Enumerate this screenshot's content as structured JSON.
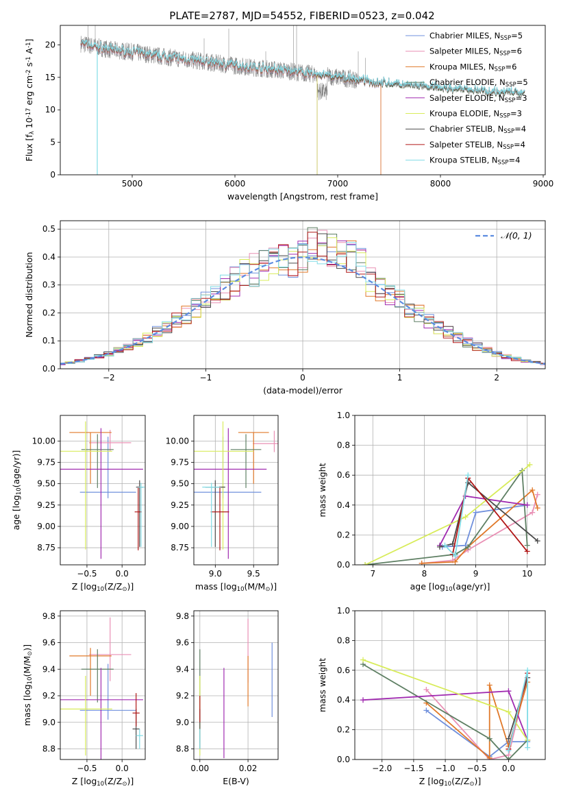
{
  "figure": {
    "title": "PLATE=2787, MJD=54552, FIBERID=0523, z=0.042"
  },
  "colors": {
    "Chabrier MILES": "#6f8fdc",
    "Salpeter MILES": "#e98fb4",
    "Kroupa MILES": "#e07828",
    "Chabrier ELODIE": "#5e7f63",
    "Salpeter ELODIE": "#a02ab0",
    "Kroupa ELODIE": "#d8ec5a",
    "Chabrier STELIB": "#4a4a4a",
    "Salpeter STELIB": "#b01616",
    "Kroupa STELIB": "#80dce6",
    "data": "#808080",
    "normal": "#5b8be0",
    "grid": "#b0b0b0"
  },
  "chart_data": [
    {
      "id": "spectrum",
      "type": "line",
      "xlabel": "wavelength [Angstrom, rest frame]",
      "ylabel": "Flux [f_λ 10^-17 erg cm^-2 s^-1 A^-1]",
      "xlim": [
        4300,
        9020
      ],
      "ylim": [
        0,
        23
      ],
      "xticks": [
        5000,
        6000,
        7000,
        8000,
        9000
      ],
      "yticks": [
        0,
        5,
        10,
        15,
        20
      ],
      "grid": false,
      "legend_position": "upper right",
      "legend": [
        {
          "label": "Chabrier MILES, N",
          "sub": "SSP",
          "val": "=5"
        },
        {
          "label": "Salpeter MILES, N",
          "sub": "SSP",
          "val": "=6"
        },
        {
          "label": "Kroupa MILES, N",
          "sub": "SSP",
          "val": "=6"
        },
        {
          "label": "Chabrier ELODIE, N",
          "sub": "SSP",
          "val": "=5"
        },
        {
          "label": "Salpeter ELODIE, N",
          "sub": "SSP",
          "val": "=3"
        },
        {
          "label": "Kroupa ELODIE, N",
          "sub": "SSP",
          "val": "=3"
        },
        {
          "label": "Chabrier STELIB, N",
          "sub": "SSP",
          "val": "=4"
        },
        {
          "label": "Salpeter STELIB, N",
          "sub": "SSP",
          "val": "=4"
        },
        {
          "label": "Kroupa STELIB, N",
          "sub": "SSP",
          "val": "=4"
        }
      ],
      "continuum": [
        [
          4500,
          20.2
        ],
        [
          4800,
          19.2
        ],
        [
          5000,
          18.9
        ],
        [
          5300,
          18.2
        ],
        [
          5600,
          17.6
        ],
        [
          6000,
          16.8
        ],
        [
          6500,
          16.0
        ],
        [
          7000,
          15.0
        ],
        [
          7500,
          14.0
        ],
        [
          8000,
          13.3
        ],
        [
          8500,
          12.8
        ],
        [
          8820,
          12.6
        ]
      ],
      "model_ranges": {
        "Chabrier MILES": [
          4500,
          7420
        ],
        "Salpeter MILES": [
          4500,
          7420
        ],
        "Kroupa MILES": [
          4500,
          7420
        ],
        "Chabrier ELODIE": [
          4500,
          8820
        ],
        "Salpeter ELODIE": [
          4500,
          6800
        ],
        "Kroupa ELODIE": [
          4500,
          6800
        ],
        "Chabrier STELIB": [
          4500,
          8820
        ],
        "Salpeter STELIB": [
          4500,
          8820
        ],
        "Kroupa STELIB": [
          4500,
          8820
        ]
      },
      "spikes": [
        [
          4660,
          0
        ],
        [
          4570,
          23
        ],
        [
          4640,
          23
        ],
        [
          5700,
          21
        ],
        [
          5940,
          22.5
        ],
        [
          6570,
          23
        ],
        [
          6600,
          23
        ],
        [
          6300,
          19
        ],
        [
          7200,
          19
        ],
        [
          7270,
          18
        ],
        [
          6800,
          0
        ],
        [
          7420,
          0
        ]
      ]
    },
    {
      "id": "residuals",
      "type": "histogram",
      "xlabel": "(data-model)/error",
      "ylabel": "Normed distribution",
      "xlim": [
        -2.5,
        2.5
      ],
      "ylim": [
        0,
        0.53
      ],
      "xticks": [
        -2,
        -1,
        0,
        1,
        2
      ],
      "yticks": [
        0.0,
        0.1,
        0.2,
        0.3,
        0.4,
        0.5
      ],
      "grid": true,
      "legend_position": "upper right",
      "normal_label": "𝒩(0, 1)",
      "bin_width": 0.1
    },
    {
      "id": "age_vs_Z",
      "type": "errorbar",
      "xlabel": "Z [log10(Z/Z⊙)]",
      "ylabel": "age [log10(age/yr)]",
      "xlim": [
        -0.88,
        0.33
      ],
      "ylim": [
        8.55,
        10.3
      ],
      "xticks": [
        -0.5,
        0.0
      ],
      "yticks": [
        8.75,
        9.0,
        9.25,
        9.5,
        9.75,
        10.0
      ],
      "grid": true,
      "points": [
        {
          "model": "Chabrier MILES",
          "x": -0.2,
          "xerr": 0.4,
          "y": 9.4,
          "yerr": [
            0.07,
            0.65
          ]
        },
        {
          "model": "Salpeter MILES",
          "x": -0.17,
          "xerr": 0.3,
          "y": 9.98,
          "yerr": [
            0.1,
            0.15
          ]
        },
        {
          "model": "Kroupa MILES",
          "x": -0.45,
          "xerr": 0.3,
          "y": 10.1,
          "yerr": [
            0.6,
            0.0
          ]
        },
        {
          "model": "Chabrier ELODIE",
          "x": -0.35,
          "xerr": 0.23,
          "y": 9.9,
          "yerr": [
            0.45,
            0.18
          ]
        },
        {
          "model": "Salpeter ELODIE",
          "x": -0.3,
          "xerr": 0.6,
          "y": 9.67,
          "yerr": [
            1.05,
            0.48
          ]
        },
        {
          "model": "Kroupa ELODIE",
          "x": -0.52,
          "xerr": 0.38,
          "y": 9.88,
          "yerr": [
            1.15,
            0.35
          ]
        },
        {
          "model": "Chabrier STELIB",
          "x": 0.25,
          "xerr": 0.05,
          "y": 9.46,
          "yerr": [
            0.7,
            0.08
          ]
        },
        {
          "model": "Salpeter STELIB",
          "x": 0.23,
          "xerr": 0.05,
          "y": 9.17,
          "yerr": [
            0.45,
            0.3
          ]
        },
        {
          "model": "Kroupa STELIB",
          "x": 0.27,
          "xerr": 0.05,
          "y": 9.46,
          "yerr": [
            0.7,
            0.05
          ]
        }
      ]
    },
    {
      "id": "age_vs_mass",
      "type": "errorbar",
      "xlabel": "mass [log10(M/M⊙)]",
      "ylabel": "",
      "xlim": [
        8.72,
        9.82
      ],
      "ylim": [
        8.55,
        10.3
      ],
      "xticks": [
        9.0,
        9.5
      ],
      "yticks": [
        8.75,
        9.0,
        9.25,
        9.5,
        9.75,
        10.0
      ],
      "grid": true,
      "points": [
        {
          "model": "Chabrier MILES",
          "x": 9.1,
          "xerr": 0.5,
          "y": 9.4,
          "yerr": [
            0.07,
            0.65
          ]
        },
        {
          "model": "Salpeter MILES",
          "x": 9.77,
          "xerr": 0.28,
          "y": 9.97,
          "yerr": [
            0.1,
            0.15
          ]
        },
        {
          "model": "Kroupa MILES",
          "x": 9.5,
          "xerr": 0.2,
          "y": 10.1,
          "yerr": [
            0.6,
            0.0
          ]
        },
        {
          "model": "Chabrier ELODIE",
          "x": 9.4,
          "xerr": 0.2,
          "y": 9.9,
          "yerr": [
            0.45,
            0.18
          ]
        },
        {
          "model": "Salpeter ELODIE",
          "x": 9.17,
          "xerr": 0.5,
          "y": 9.67,
          "yerr": [
            1.05,
            0.48
          ]
        },
        {
          "model": "Kroupa ELODIE",
          "x": 9.1,
          "xerr": 0.4,
          "y": 9.88,
          "yerr": [
            1.15,
            0.35
          ]
        },
        {
          "model": "Chabrier STELIB",
          "x": 9.0,
          "xerr": 0.13,
          "y": 9.46,
          "yerr": [
            0.7,
            0.08
          ]
        },
        {
          "model": "Salpeter STELIB",
          "x": 9.06,
          "xerr": 0.12,
          "y": 9.17,
          "yerr": [
            0.45,
            0.3
          ]
        },
        {
          "model": "Kroupa STELIB",
          "x": 8.95,
          "xerr": 0.12,
          "y": 9.46,
          "yerr": [
            0.7,
            0.05
          ]
        }
      ]
    },
    {
      "id": "weight_vs_age",
      "type": "line",
      "xlabel": "age [log10(age/yr)]",
      "ylabel": "mass weight",
      "xlim": [
        6.65,
        10.35
      ],
      "ylim": [
        0.0,
        1.0
      ],
      "xticks": [
        7,
        8,
        9,
        10
      ],
      "yticks": [
        0.0,
        0.2,
        0.4,
        0.6,
        0.8,
        1.0
      ],
      "grid": true,
      "series": [
        {
          "model": "Chabrier MILES",
          "x": [
            8.35,
            8.8,
            9.0,
            10.0
          ],
          "y": [
            0.12,
            0.13,
            0.35,
            0.4
          ]
        },
        {
          "model": "Salpeter MILES",
          "x": [
            7.95,
            8.55,
            8.85,
            10.1,
            10.2
          ],
          "y": [
            0.01,
            0.03,
            0.1,
            0.35,
            0.47
          ]
        },
        {
          "model": "Kroupa MILES",
          "x": [
            7.95,
            8.6,
            8.85,
            10.1,
            10.2
          ],
          "y": [
            0.01,
            0.02,
            0.12,
            0.5,
            0.38
          ]
        },
        {
          "model": "Chabrier ELODIE",
          "x": [
            6.85,
            8.6,
            8.85,
            9.9,
            10.0
          ],
          "y": [
            0.0,
            0.07,
            0.12,
            0.63,
            0.13
          ]
        },
        {
          "model": "Salpeter ELODIE",
          "x": [
            8.3,
            8.8,
            10.0
          ],
          "y": [
            0.13,
            0.46,
            0.4
          ]
        },
        {
          "model": "Kroupa ELODIE",
          "x": [
            6.85,
            8.8,
            10.05
          ],
          "y": [
            0.0,
            0.32,
            0.67
          ]
        },
        {
          "model": "Chabrier STELIB",
          "x": [
            8.3,
            8.55,
            8.85,
            10.2
          ],
          "y": [
            0.12,
            0.14,
            0.55,
            0.16
          ]
        },
        {
          "model": "Salpeter STELIB",
          "x": [
            8.55,
            8.85,
            10.0
          ],
          "y": [
            0.07,
            0.58,
            0.09
          ]
        },
        {
          "model": "Kroupa STELIB",
          "x": [
            8.4,
            8.6,
            8.85
          ],
          "y": [
            0.13,
            0.06,
            0.6
          ]
        }
      ]
    },
    {
      "id": "mass_vs_Z",
      "type": "errorbar",
      "xlabel": "Z [log10(Z/Z⊙)]",
      "ylabel": "mass [log10(M/M⊙)]",
      "xlim": [
        -0.88,
        0.33
      ],
      "ylim": [
        8.72,
        9.84
      ],
      "xticks": [
        -0.5,
        0.0
      ],
      "yticks": [
        8.8,
        9.0,
        9.2,
        9.4,
        9.6,
        9.8
      ],
      "grid": true,
      "points": [
        {
          "model": "Chabrier MILES",
          "x": -0.2,
          "xerr": 0.4,
          "y": 9.09,
          "yerr": [
            0.07,
            0.35
          ]
        },
        {
          "model": "Salpeter MILES",
          "x": -0.17,
          "xerr": 0.3,
          "y": 9.51,
          "yerr": [
            0.2,
            0.28
          ]
        },
        {
          "model": "Kroupa MILES",
          "x": -0.45,
          "xerr": 0.3,
          "y": 9.5,
          "yerr": [
            0.3,
            0.06
          ]
        },
        {
          "model": "Chabrier ELODIE",
          "x": -0.35,
          "xerr": 0.23,
          "y": 9.4,
          "yerr": [
            0.25,
            0.15
          ]
        },
        {
          "model": "Salpeter ELODIE",
          "x": -0.3,
          "xerr": 0.6,
          "y": 9.17,
          "yerr": [
            0.45,
            0.24
          ]
        },
        {
          "model": "Kroupa ELODIE",
          "x": -0.52,
          "xerr": 0.38,
          "y": 9.1,
          "yerr": [
            0.35,
            0.25
          ]
        },
        {
          "model": "Chabrier STELIB",
          "x": 0.2,
          "xerr": 0.05,
          "y": 8.95,
          "yerr": [
            0.15,
            0.15
          ]
        },
        {
          "model": "Salpeter STELIB",
          "x": 0.2,
          "xerr": 0.05,
          "y": 9.07,
          "yerr": [
            0.1,
            0.15
          ]
        },
        {
          "model": "Kroupa STELIB",
          "x": 0.25,
          "xerr": 0.05,
          "y": 8.9,
          "yerr": [
            0.1,
            0.05
          ]
        }
      ]
    },
    {
      "id": "mass_vs_EBV",
      "type": "errorbar",
      "xlabel": "E(B-V)",
      "ylabel": "",
      "xlim": [
        -0.0025,
        0.0325
      ],
      "ylim": [
        8.72,
        9.84
      ],
      "xticks": [
        0.0,
        0.02
      ],
      "yticks": [
        8.8,
        9.0,
        9.2,
        9.4,
        9.6,
        9.8
      ],
      "grid": true,
      "points": [
        {
          "model": "Chabrier MILES",
          "x": 0.03,
          "xerr": 0.0,
          "y": 9.3,
          "yerr": [
            0.26,
            0.3
          ]
        },
        {
          "model": "Salpeter MILES",
          "x": 0.02,
          "xerr": 0.0,
          "y": 9.5,
          "yerr": [
            0.2,
            0.28
          ]
        },
        {
          "model": "Kroupa MILES",
          "x": 0.02,
          "xerr": 0.0,
          "y": 9.4,
          "yerr": [
            0.28,
            0.1
          ]
        },
        {
          "model": "Chabrier ELODIE",
          "x": 0.0,
          "xerr": 0.0,
          "y": 9.2,
          "yerr": [
            0.35,
            0.35
          ]
        },
        {
          "model": "Salpeter ELODIE",
          "x": 0.01,
          "xerr": 0.0,
          "y": 9.05,
          "yerr": [
            0.32,
            0.36
          ]
        },
        {
          "model": "Kroupa ELODIE",
          "x": 0.0,
          "xerr": 0.0,
          "y": 9.05,
          "yerr": [
            0.3,
            0.3
          ]
        },
        {
          "model": "Chabrier STELIB",
          "x": 0.0,
          "xerr": 0.0,
          "y": 8.95,
          "yerr": [
            0.15,
            0.15
          ]
        },
        {
          "model": "Salpeter STELIB",
          "x": 0.0,
          "xerr": 0.0,
          "y": 9.1,
          "yerr": [
            0.1,
            0.1
          ]
        },
        {
          "model": "Kroupa STELIB",
          "x": 0.0,
          "xerr": 0.0,
          "y": 8.9,
          "yerr": [
            0.1,
            0.05
          ]
        }
      ]
    },
    {
      "id": "weight_vs_Z",
      "type": "line",
      "xlabel": "Z [log10(Z/Z⊙)]",
      "ylabel": "mass weight",
      "xlim": [
        -2.43,
        0.58
      ],
      "ylim": [
        0.0,
        1.0
      ],
      "xticks": [
        -2.0,
        -1.5,
        -1.0,
        -0.5,
        0.0
      ],
      "yticks": [
        0.0,
        0.2,
        0.4,
        0.6,
        0.8,
        1.0
      ],
      "grid": true,
      "series": [
        {
          "model": "Chabrier MILES",
          "x": [
            -1.3,
            -0.3,
            0.0,
            0.3
          ],
          "y": [
            0.33,
            0.02,
            0.12,
            0.12
          ]
        },
        {
          "model": "Salpeter MILES",
          "x": [
            -1.3,
            -0.3,
            0.0,
            0.3
          ],
          "y": [
            0.47,
            0.0,
            0.03,
            0.55
          ]
        },
        {
          "model": "Kroupa MILES",
          "x": [
            -1.3,
            -0.3,
            -0.3,
            0.0,
            0.3
          ],
          "y": [
            0.38,
            0.01,
            0.5,
            0.09,
            0.52
          ]
        },
        {
          "model": "Chabrier ELODIE",
          "x": [
            -2.3,
            -0.3,
            0.0,
            0.3
          ],
          "y": [
            0.64,
            0.14,
            0.0,
            0.13
          ]
        },
        {
          "model": "Salpeter ELODIE",
          "x": [
            -2.3,
            0.0,
            0.3
          ],
          "y": [
            0.4,
            0.46,
            0.13
          ]
        },
        {
          "model": "Kroupa ELODIE",
          "x": [
            -2.3,
            0.0,
            0.3
          ],
          "y": [
            0.67,
            0.32,
            0.13
          ]
        },
        {
          "model": "Chabrier STELIB",
          "x": [
            0.0,
            0.3
          ],
          "y": [
            0.14,
            0.55
          ]
        },
        {
          "model": "Salpeter STELIB",
          "x": [
            0.0,
            0.3
          ],
          "y": [
            0.07,
            0.58
          ]
        },
        {
          "model": "Kroupa STELIB",
          "x": [
            0.0,
            0.3,
            0.3
          ],
          "y": [
            0.06,
            0.6,
            0.08
          ]
        }
      ]
    }
  ]
}
